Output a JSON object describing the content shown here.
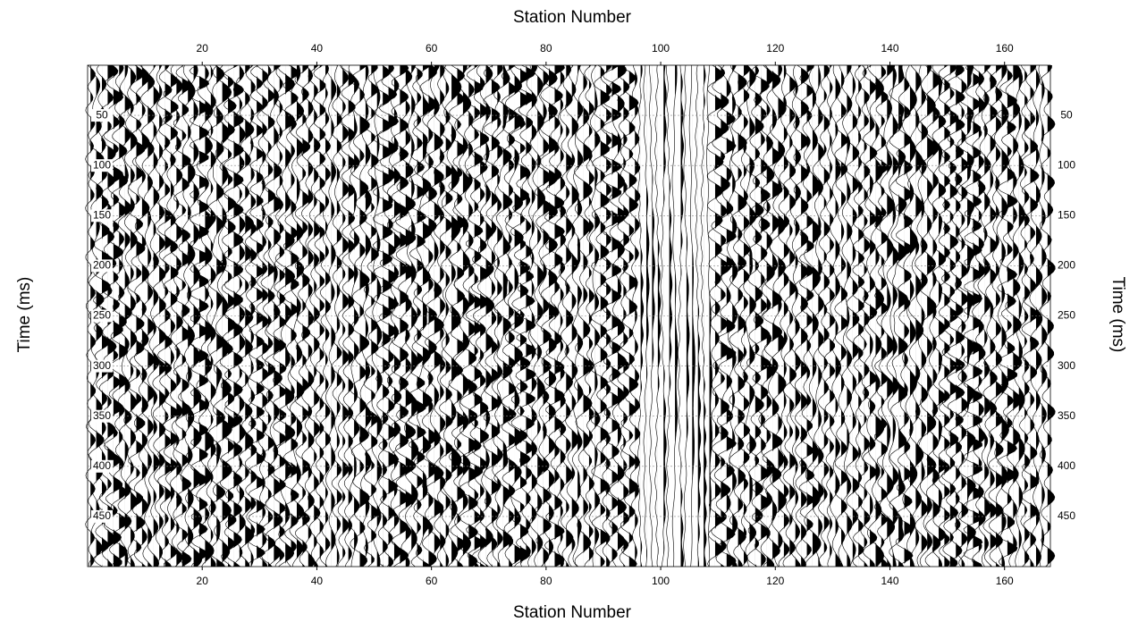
{
  "chart_data": {
    "type": "wiggle",
    "xlabel": "Station Number",
    "ylabel": "Time (ms)",
    "xlim": [
      0,
      168
    ],
    "ylim": [
      0,
      500
    ],
    "y_inverted": true,
    "xticks": [
      20,
      40,
      60,
      80,
      100,
      120,
      140,
      160
    ],
    "yticks": [
      50,
      100,
      150,
      200,
      250,
      300,
      350,
      400,
      450
    ],
    "grid": true,
    "color": "#000000"
  }
}
